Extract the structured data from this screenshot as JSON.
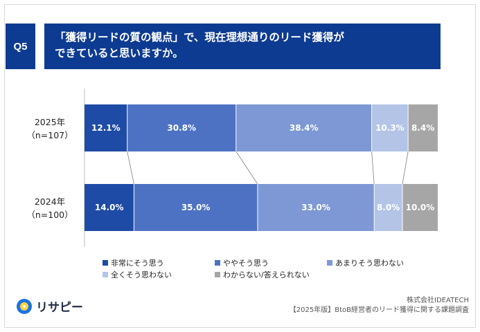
{
  "header": {
    "q_label": "Q5",
    "title_line1": "「獲得リードの質の観点」で、現在理想通りのリード獲得が",
    "title_line2": "できていると思いますか。"
  },
  "chart_data": {
    "type": "bar",
    "stacked": true,
    "orientation": "horizontal",
    "percent_scale": true,
    "categories": [
      {
        "label": "2025年",
        "sublabel": "（n=107）"
      },
      {
        "label": "2024年",
        "sublabel": "（n=100）"
      }
    ],
    "series": [
      {
        "name": "非常にそう思う",
        "color": "#1e4ba5",
        "values": [
          12.1,
          14.0
        ]
      },
      {
        "name": "ややそう思う",
        "color": "#4e72c3",
        "values": [
          30.8,
          35.0
        ]
      },
      {
        "name": "あまりそう思わない",
        "color": "#7d98d4",
        "values": [
          38.4,
          33.0
        ]
      },
      {
        "name": "全くそう思わない",
        "color": "#b3c4e7",
        "values": [
          10.3,
          8.0
        ]
      },
      {
        "name": "わからない/答えられない",
        "color": "#a6a6a6",
        "values": [
          8.4,
          10.0
        ]
      }
    ],
    "data_labels": [
      [
        "12.1%",
        "30.8%",
        "38.4%",
        "10.3%",
        "8.4%"
      ],
      [
        "14.0%",
        "35.0%",
        "33.0%",
        "8.0%",
        "10.0%"
      ]
    ],
    "connector_lines": true,
    "legend_position": "bottom"
  },
  "branding": {
    "logo_text": "リサピー",
    "company": "株式会社IDEATECH",
    "survey_title": "【2025年版】BtoB経営者のリード獲得に関する課題調査"
  }
}
